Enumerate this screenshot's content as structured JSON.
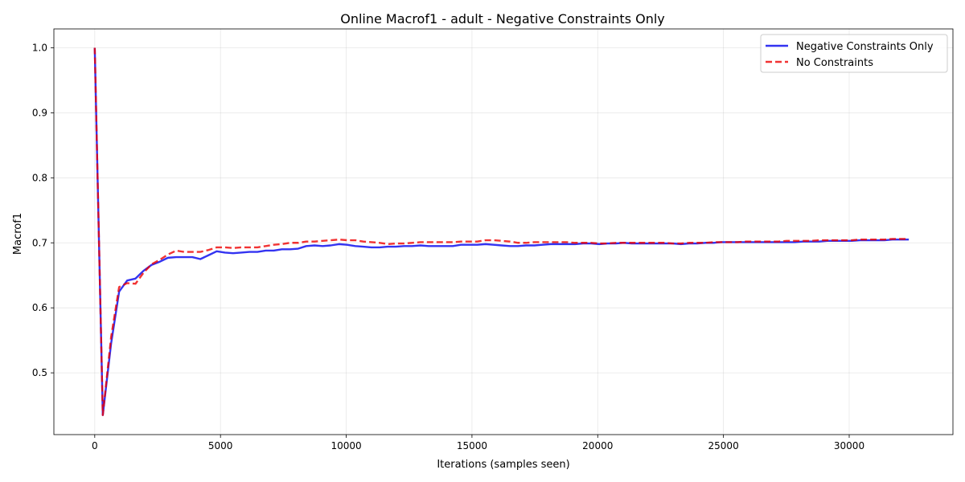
{
  "chart_data": {
    "type": "line",
    "title": "Online Macrof1 - adult - Negative Constraints Only",
    "xlabel": "Iterations (samples seen)",
    "ylabel": "Macrof1",
    "xlim": [
      -1625,
      34125
    ],
    "ylim": [
      0.405,
      1.029
    ],
    "xticks": [
      0,
      5000,
      10000,
      15000,
      20000,
      25000,
      30000
    ],
    "xtick_labels": [
      "0",
      "5000",
      "10000",
      "15000",
      "20000",
      "25000",
      "30000"
    ],
    "yticks": [
      0.5,
      0.6,
      0.7,
      0.8,
      0.9,
      1.0
    ],
    "ytick_labels": [
      "0.5",
      "0.6",
      "0.7",
      "0.8",
      "0.9",
      "1.0"
    ],
    "grid": true,
    "legend_position": "top-right",
    "series": [
      {
        "name": "Negative Constraints Only",
        "color": "#0000ee",
        "style": "solid",
        "points": [
          [
            0,
            1.0
          ],
          [
            320,
            0.435
          ],
          [
            650,
            0.545
          ],
          [
            970,
            0.625
          ],
          [
            1290,
            0.642
          ],
          [
            1620,
            0.645
          ],
          [
            1940,
            0.657
          ],
          [
            2260,
            0.666
          ],
          [
            2590,
            0.671
          ],
          [
            2910,
            0.677
          ],
          [
            3240,
            0.678
          ],
          [
            3560,
            0.678
          ],
          [
            3880,
            0.678
          ],
          [
            4200,
            0.675
          ],
          [
            4530,
            0.681
          ],
          [
            4850,
            0.687
          ],
          [
            5180,
            0.685
          ],
          [
            5500,
            0.684
          ],
          [
            5820,
            0.685
          ],
          [
            6150,
            0.686
          ],
          [
            6470,
            0.686
          ],
          [
            6800,
            0.688
          ],
          [
            7120,
            0.688
          ],
          [
            7440,
            0.69
          ],
          [
            7770,
            0.69
          ],
          [
            8090,
            0.691
          ],
          [
            8410,
            0.695
          ],
          [
            8740,
            0.696
          ],
          [
            9060,
            0.695
          ],
          [
            9380,
            0.696
          ],
          [
            9710,
            0.698
          ],
          [
            10030,
            0.697
          ],
          [
            10360,
            0.695
          ],
          [
            10680,
            0.694
          ],
          [
            11000,
            0.693
          ],
          [
            11330,
            0.693
          ],
          [
            11650,
            0.694
          ],
          [
            11970,
            0.694
          ],
          [
            12300,
            0.695
          ],
          [
            12620,
            0.695
          ],
          [
            12950,
            0.696
          ],
          [
            13270,
            0.695
          ],
          [
            13590,
            0.695
          ],
          [
            13920,
            0.695
          ],
          [
            14240,
            0.695
          ],
          [
            14560,
            0.697
          ],
          [
            14890,
            0.697
          ],
          [
            15210,
            0.697
          ],
          [
            15540,
            0.698
          ],
          [
            15860,
            0.697
          ],
          [
            16180,
            0.696
          ],
          [
            16510,
            0.695
          ],
          [
            16830,
            0.695
          ],
          [
            17150,
            0.696
          ],
          [
            17480,
            0.696
          ],
          [
            17800,
            0.697
          ],
          [
            18130,
            0.698
          ],
          [
            18450,
            0.698
          ],
          [
            18770,
            0.698
          ],
          [
            19100,
            0.698
          ],
          [
            19420,
            0.699
          ],
          [
            19740,
            0.699
          ],
          [
            20070,
            0.698
          ],
          [
            20390,
            0.699
          ],
          [
            20720,
            0.699
          ],
          [
            21040,
            0.7
          ],
          [
            21360,
            0.699
          ],
          [
            21690,
            0.699
          ],
          [
            22010,
            0.699
          ],
          [
            22330,
            0.699
          ],
          [
            22660,
            0.699
          ],
          [
            22980,
            0.699
          ],
          [
            23310,
            0.698
          ],
          [
            23630,
            0.699
          ],
          [
            23950,
            0.699
          ],
          [
            24280,
            0.7
          ],
          [
            24600,
            0.7
          ],
          [
            24920,
            0.701
          ],
          [
            25250,
            0.701
          ],
          [
            25570,
            0.701
          ],
          [
            25900,
            0.701
          ],
          [
            26220,
            0.701
          ],
          [
            26540,
            0.701
          ],
          [
            26870,
            0.701
          ],
          [
            27190,
            0.701
          ],
          [
            27510,
            0.701
          ],
          [
            27840,
            0.701
          ],
          [
            28160,
            0.702
          ],
          [
            28490,
            0.702
          ],
          [
            28810,
            0.702
          ],
          [
            29130,
            0.703
          ],
          [
            29460,
            0.703
          ],
          [
            29780,
            0.703
          ],
          [
            30100,
            0.703
          ],
          [
            30430,
            0.704
          ],
          [
            30750,
            0.704
          ],
          [
            31080,
            0.704
          ],
          [
            31400,
            0.704
          ],
          [
            31720,
            0.705
          ],
          [
            32050,
            0.705
          ],
          [
            32370,
            0.705
          ]
        ]
      },
      {
        "name": "No Constraints",
        "color": "#ee0000",
        "style": "dashed",
        "points": [
          [
            0,
            1.0
          ],
          [
            320,
            0.435
          ],
          [
            650,
            0.555
          ],
          [
            970,
            0.632
          ],
          [
            1290,
            0.638
          ],
          [
            1620,
            0.637
          ],
          [
            1940,
            0.654
          ],
          [
            2260,
            0.667
          ],
          [
            2590,
            0.674
          ],
          [
            2910,
            0.682
          ],
          [
            3240,
            0.688
          ],
          [
            3560,
            0.686
          ],
          [
            3880,
            0.686
          ],
          [
            4200,
            0.686
          ],
          [
            4530,
            0.689
          ],
          [
            4850,
            0.693
          ],
          [
            5180,
            0.693
          ],
          [
            5500,
            0.692
          ],
          [
            5820,
            0.693
          ],
          [
            6150,
            0.693
          ],
          [
            6470,
            0.693
          ],
          [
            6800,
            0.695
          ],
          [
            7120,
            0.697
          ],
          [
            7440,
            0.698
          ],
          [
            7770,
            0.7
          ],
          [
            8090,
            0.7
          ],
          [
            8410,
            0.702
          ],
          [
            8740,
            0.702
          ],
          [
            9060,
            0.703
          ],
          [
            9380,
            0.704
          ],
          [
            9710,
            0.705
          ],
          [
            10030,
            0.704
          ],
          [
            10360,
            0.704
          ],
          [
            10680,
            0.702
          ],
          [
            11000,
            0.701
          ],
          [
            11330,
            0.7
          ],
          [
            11650,
            0.698
          ],
          [
            11970,
            0.699
          ],
          [
            12300,
            0.699
          ],
          [
            12620,
            0.7
          ],
          [
            12950,
            0.701
          ],
          [
            13270,
            0.701
          ],
          [
            13590,
            0.701
          ],
          [
            13920,
            0.701
          ],
          [
            14240,
            0.701
          ],
          [
            14560,
            0.702
          ],
          [
            14890,
            0.702
          ],
          [
            15210,
            0.702
          ],
          [
            15540,
            0.704
          ],
          [
            15860,
            0.704
          ],
          [
            16180,
            0.703
          ],
          [
            16510,
            0.702
          ],
          [
            16830,
            0.7
          ],
          [
            17150,
            0.7
          ],
          [
            17480,
            0.701
          ],
          [
            17800,
            0.701
          ],
          [
            18130,
            0.701
          ],
          [
            18450,
            0.701
          ],
          [
            18770,
            0.701
          ],
          [
            19100,
            0.7
          ],
          [
            19420,
            0.7
          ],
          [
            19740,
            0.7
          ],
          [
            20070,
            0.699
          ],
          [
            20390,
            0.699
          ],
          [
            20720,
            0.7
          ],
          [
            21040,
            0.7
          ],
          [
            21360,
            0.7
          ],
          [
            21690,
            0.7
          ],
          [
            22010,
            0.7
          ],
          [
            22330,
            0.7
          ],
          [
            22660,
            0.7
          ],
          [
            22980,
            0.699
          ],
          [
            23310,
            0.699
          ],
          [
            23630,
            0.7
          ],
          [
            23950,
            0.7
          ],
          [
            24280,
            0.7
          ],
          [
            24600,
            0.701
          ],
          [
            24920,
            0.701
          ],
          [
            25250,
            0.701
          ],
          [
            25570,
            0.701
          ],
          [
            25900,
            0.702
          ],
          [
            26220,
            0.702
          ],
          [
            26540,
            0.702
          ],
          [
            26870,
            0.702
          ],
          [
            27190,
            0.702
          ],
          [
            27510,
            0.703
          ],
          [
            27840,
            0.703
          ],
          [
            28160,
            0.703
          ],
          [
            28490,
            0.703
          ],
          [
            28810,
            0.704
          ],
          [
            29130,
            0.704
          ],
          [
            29460,
            0.704
          ],
          [
            29780,
            0.704
          ],
          [
            30100,
            0.704
          ],
          [
            30430,
            0.705
          ],
          [
            30750,
            0.705
          ],
          [
            31080,
            0.705
          ],
          [
            31400,
            0.705
          ],
          [
            31720,
            0.706
          ],
          [
            32050,
            0.706
          ],
          [
            32370,
            0.706
          ]
        ]
      }
    ]
  }
}
